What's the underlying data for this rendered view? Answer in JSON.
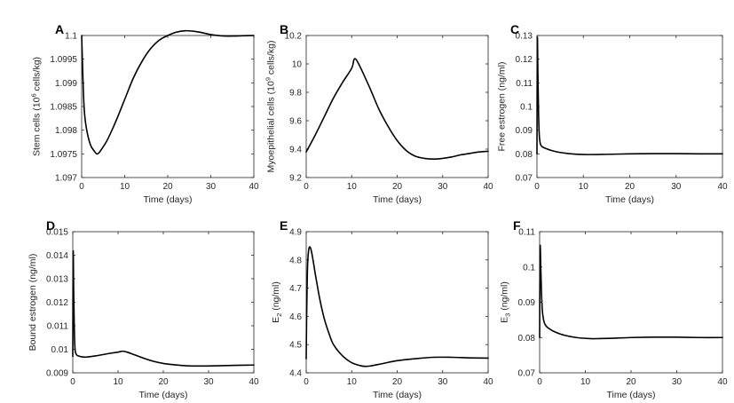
{
  "chart_data": [
    {
      "panel": "A",
      "type": "line",
      "title": "",
      "xlabel": "Time (days)",
      "ylabel": "Stem cells (10^6 cells/kg)",
      "ylabel_parts": [
        "Stem cells (10",
        "6",
        " cells/kg)"
      ],
      "xlim": [
        0,
        40
      ],
      "ylim": [
        1.097,
        1.1
      ],
      "xticks": [
        "0",
        "10",
        "20",
        "30",
        "40"
      ],
      "xtick_values": [
        0,
        10,
        20,
        30,
        40
      ],
      "yticks": [
        "1.097",
        "1.0975",
        "1.098",
        "1.0985",
        "1.099",
        "1.0995",
        "1.1"
      ],
      "ytick_values": [
        1.097,
        1.0975,
        1.098,
        1.0985,
        1.099,
        1.0995,
        1.1
      ],
      "series": [
        {
          "name": "Stem cells",
          "x": [
            0,
            0.5,
            1,
            2,
            3,
            3.5,
            4,
            5,
            6,
            8,
            10,
            12,
            14,
            16,
            18,
            20,
            22,
            24,
            26,
            28,
            30,
            33,
            36,
            40
          ],
          "y": [
            1.1,
            1.0986,
            1.0981,
            1.0977,
            1.09755,
            1.0975,
            1.09752,
            1.09765,
            1.0978,
            1.0982,
            1.09865,
            1.0991,
            1.09945,
            1.09972,
            1.0999,
            1.1,
            1.10007,
            1.1001,
            1.10009,
            1.10006,
            1.10002,
            1.09999,
            1.09999,
            1.1
          ]
        }
      ]
    },
    {
      "panel": "B",
      "type": "line",
      "title": "",
      "xlabel": "Time (days)",
      "ylabel": "Myoepithelial cells (10^9 cells/kg)",
      "ylabel_parts": [
        "Myoepithelial cells (10",
        "9",
        " cells/kg)"
      ],
      "xlim": [
        0,
        40
      ],
      "ylim": [
        9.2,
        10.2
      ],
      "xticks": [
        "0",
        "10",
        "20",
        "30",
        "40"
      ],
      "xtick_values": [
        0,
        10,
        20,
        30,
        40
      ],
      "yticks": [
        "9.2",
        "9.4",
        "9.6",
        "9.8",
        "10",
        "10.2"
      ],
      "ytick_values": [
        9.2,
        9.4,
        9.6,
        9.8,
        10,
        10.2
      ],
      "series": [
        {
          "name": "Myoepithelial cells",
          "x": [
            0,
            2,
            4,
            6,
            8,
            10,
            10.5,
            11,
            12,
            14,
            16,
            18,
            20,
            22,
            24,
            26,
            28,
            30,
            32,
            34,
            36,
            38,
            40
          ],
          "y": [
            9.38,
            9.5,
            9.63,
            9.76,
            9.87,
            9.97,
            10.03,
            10.03,
            9.97,
            9.83,
            9.68,
            9.56,
            9.46,
            9.39,
            9.35,
            9.335,
            9.33,
            9.335,
            9.345,
            9.36,
            9.37,
            9.38,
            9.385
          ]
        }
      ]
    },
    {
      "panel": "C",
      "type": "line",
      "title": "",
      "xlabel": "Time (days)",
      "ylabel": "Free estrogen (ng/ml)",
      "xlim": [
        0,
        40
      ],
      "ylim": [
        0.07,
        0.13
      ],
      "xticks": [
        "0",
        "10",
        "20",
        "30",
        "40"
      ],
      "xtick_values": [
        0,
        10,
        20,
        30,
        40
      ],
      "yticks": [
        "0.07",
        "0.08",
        "0.09",
        "0.1",
        "0.11",
        "0.12",
        "0.13"
      ],
      "ytick_values": [
        0.07,
        0.08,
        0.09,
        0.1,
        0.11,
        0.12,
        0.13
      ],
      "series": [
        {
          "name": "Free estrogen",
          "x": [
            0,
            0.08,
            0.2,
            0.35,
            0.5,
            0.7,
            1,
            1.5,
            2,
            3,
            5,
            8,
            11,
            15,
            20,
            25,
            30,
            35,
            40
          ],
          "y": [
            0.08,
            0.128,
            0.114,
            0.097,
            0.088,
            0.0845,
            0.0832,
            0.0826,
            0.0822,
            0.0815,
            0.0806,
            0.0799,
            0.0797,
            0.0798,
            0.08,
            0.0801,
            0.0801,
            0.08,
            0.08
          ]
        }
      ]
    },
    {
      "panel": "D",
      "type": "line",
      "title": "",
      "xlabel": "Time (days)",
      "ylabel": "Bound estrogen (ng/ml)",
      "xlim": [
        0,
        40
      ],
      "ylim": [
        0.009,
        0.015
      ],
      "xticks": [
        "0",
        "10",
        "20",
        "30",
        "40"
      ],
      "xtick_values": [
        0,
        10,
        20,
        30,
        40
      ],
      "yticks": [
        "0.009",
        "0.01",
        "0.011",
        "0.012",
        "0.013",
        "0.014",
        "0.015"
      ],
      "ytick_values": [
        0.009,
        0.01,
        0.011,
        0.012,
        0.013,
        0.014,
        0.015
      ],
      "series": [
        {
          "name": "Bound estrogen",
          "x": [
            0,
            0.08,
            0.2,
            0.35,
            0.5,
            0.8,
            1.2,
            2,
            3,
            5,
            8,
            10,
            11,
            12,
            14,
            16,
            18,
            20,
            22,
            25,
            28,
            32,
            36,
            40
          ],
          "y": [
            0.0097,
            0.0141,
            0.0125,
            0.0108,
            0.01,
            0.00978,
            0.00972,
            0.00968,
            0.00967,
            0.00972,
            0.00982,
            0.00988,
            0.00992,
            0.00988,
            0.00974,
            0.0096,
            0.00948,
            0.0094,
            0.00935,
            0.0093,
            0.00929,
            0.0093,
            0.00932,
            0.00933
          ]
        }
      ]
    },
    {
      "panel": "E",
      "type": "line",
      "title": "",
      "xlabel": "Time (days)",
      "ylabel": "E2 (ng/ml)",
      "ylabel_parts": [
        "E",
        "2",
        " (ng/ml)"
      ],
      "xlim": [
        0,
        40
      ],
      "ylim": [
        4.4,
        4.9
      ],
      "xticks": [
        "0",
        "10",
        "20",
        "30",
        "40"
      ],
      "xtick_values": [
        0,
        10,
        20,
        30,
        40
      ],
      "yticks": [
        "4.4",
        "4.5",
        "4.6",
        "4.7",
        "4.8",
        "4.9"
      ],
      "ytick_values": [
        4.4,
        4.5,
        4.6,
        4.7,
        4.8,
        4.9
      ],
      "series": [
        {
          "name": "E2",
          "x": [
            0,
            0.1,
            0.3,
            0.6,
            1,
            1.5,
            2,
            3,
            4,
            5,
            6,
            8,
            10,
            12,
            13,
            14,
            16,
            18,
            20,
            24,
            28,
            32,
            36,
            40
          ],
          "y": [
            4.45,
            4.6,
            4.78,
            4.84,
            4.84,
            4.8,
            4.75,
            4.66,
            4.59,
            4.54,
            4.5,
            4.46,
            4.436,
            4.425,
            4.423,
            4.424,
            4.43,
            4.437,
            4.443,
            4.45,
            4.455,
            4.455,
            4.453,
            4.452
          ]
        }
      ]
    },
    {
      "panel": "F",
      "type": "line",
      "title": "",
      "xlabel": "Time (days)",
      "ylabel": "E3 (ng/ml)",
      "ylabel_parts": [
        "E",
        "3",
        " (ng/ml)"
      ],
      "xlim": [
        0,
        40
      ],
      "ylim": [
        0.07,
        0.11
      ],
      "xticks": [
        "0",
        "10",
        "20",
        "30",
        "40"
      ],
      "xtick_values": [
        0,
        10,
        20,
        30,
        40
      ],
      "yticks": [
        "0.07",
        "0.08",
        "0.09",
        "0.1",
        "0.11"
      ],
      "ytick_values": [
        0.07,
        0.08,
        0.09,
        0.1,
        0.11
      ],
      "series": [
        {
          "name": "E3",
          "x": [
            0,
            0.1,
            0.25,
            0.4,
            0.6,
            0.9,
            1.2,
            1.6,
            2,
            3,
            5,
            8,
            11,
            13,
            16,
            20,
            25,
            30,
            35,
            40
          ],
          "y": [
            0.08,
            0.1052,
            0.1,
            0.093,
            0.0875,
            0.0848,
            0.0837,
            0.083,
            0.0826,
            0.0818,
            0.0808,
            0.08,
            0.0797,
            0.0797,
            0.0798,
            0.08,
            0.0801,
            0.0801,
            0.08,
            0.08
          ]
        }
      ]
    }
  ]
}
